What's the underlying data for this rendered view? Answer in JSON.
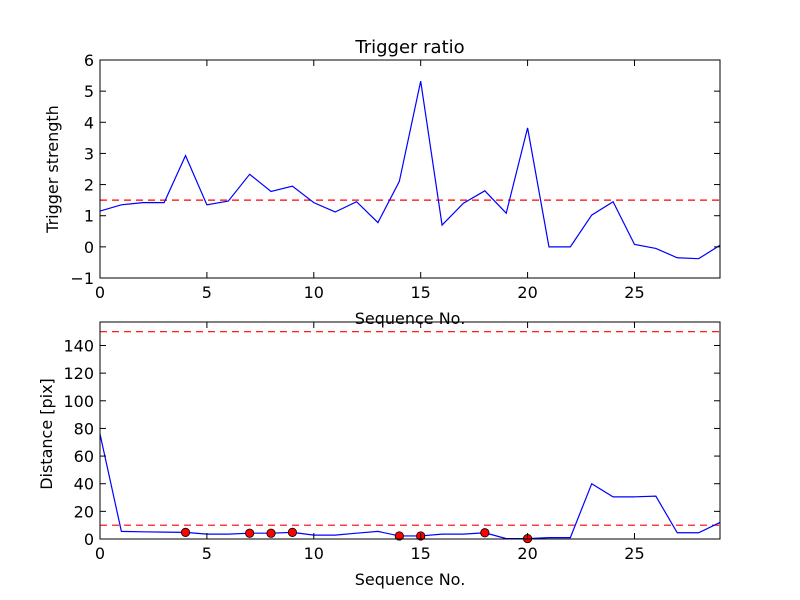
{
  "chart_data": [
    {
      "type": "line",
      "title": "Trigger ratio",
      "xlabel": "Sequence No.",
      "ylabel": "Trigger strength",
      "xlim": [
        0,
        29
      ],
      "ylim": [
        -1,
        6
      ],
      "xticks": [
        0,
        5,
        10,
        15,
        20,
        25
      ],
      "yticks": [
        -1,
        0,
        1,
        2,
        3,
        4,
        5,
        6
      ],
      "ytick_labels": [
        "−1",
        "0",
        "1",
        "2",
        "3",
        "4",
        "5",
        "6"
      ],
      "x": [
        0,
        1,
        2,
        3,
        4,
        5,
        6,
        7,
        8,
        9,
        10,
        11,
        12,
        13,
        14,
        15,
        16,
        17,
        18,
        19,
        20,
        21,
        22,
        23,
        24,
        25,
        26,
        27,
        28,
        29
      ],
      "series": [
        {
          "color": "#0000ff",
          "values": [
            1.15,
            1.35,
            1.42,
            1.42,
            2.93,
            1.35,
            1.47,
            2.33,
            1.78,
            1.95,
            1.42,
            1.12,
            1.45,
            0.78,
            2.1,
            5.32,
            0.7,
            1.4,
            1.8,
            1.08,
            3.82,
            0.0,
            0.0,
            1.02,
            1.45,
            0.08,
            -0.05,
            -0.35,
            -0.38,
            0.05
          ]
        }
      ],
      "threshold": {
        "value": 1.5,
        "color": "#ff0000",
        "style": "dashed"
      },
      "grid": false
    },
    {
      "type": "line",
      "title": "",
      "xlabel": "Sequence No.",
      "ylabel": "Distance [pix]",
      "xlim": [
        0,
        29
      ],
      "ylim": [
        0,
        157
      ],
      "xticks": [
        0,
        5,
        10,
        15,
        20,
        25
      ],
      "yticks": [
        0,
        20,
        40,
        60,
        80,
        100,
        120,
        140
      ],
      "ytick_labels": [
        "0",
        "20",
        "40",
        "60",
        "80",
        "100",
        "120",
        "140"
      ],
      "x": [
        0,
        1,
        2,
        3,
        4,
        5,
        6,
        7,
        8,
        9,
        10,
        11,
        12,
        13,
        14,
        15,
        16,
        17,
        18,
        19,
        20,
        21,
        22,
        23,
        24,
        25,
        26,
        27,
        28,
        29
      ],
      "series": [
        {
          "color": "#0000ff",
          "values": [
            76,
            5.5,
            5.2,
            5.0,
            4.8,
            3.5,
            3.5,
            4.2,
            4.2,
            4.8,
            2.8,
            2.8,
            4.2,
            5.5,
            2.2,
            2.2,
            3.5,
            3.5,
            4.5,
            0.3,
            0.3,
            1.0,
            1.0,
            40,
            30.5,
            30.5,
            31,
            4.5,
            4.5,
            12
          ]
        }
      ],
      "markers": {
        "color": "#ff0000",
        "x": [
          4,
          7,
          8,
          9,
          14,
          15,
          18,
          20
        ],
        "y": [
          4.8,
          4.2,
          4.2,
          4.8,
          2.2,
          2.2,
          4.5,
          0.3
        ]
      },
      "thresholds": [
        {
          "value": 150,
          "color": "#ff0000",
          "style": "dashed"
        },
        {
          "value": 10,
          "color": "#ff0000",
          "style": "dashed"
        }
      ],
      "grid": false
    }
  ]
}
